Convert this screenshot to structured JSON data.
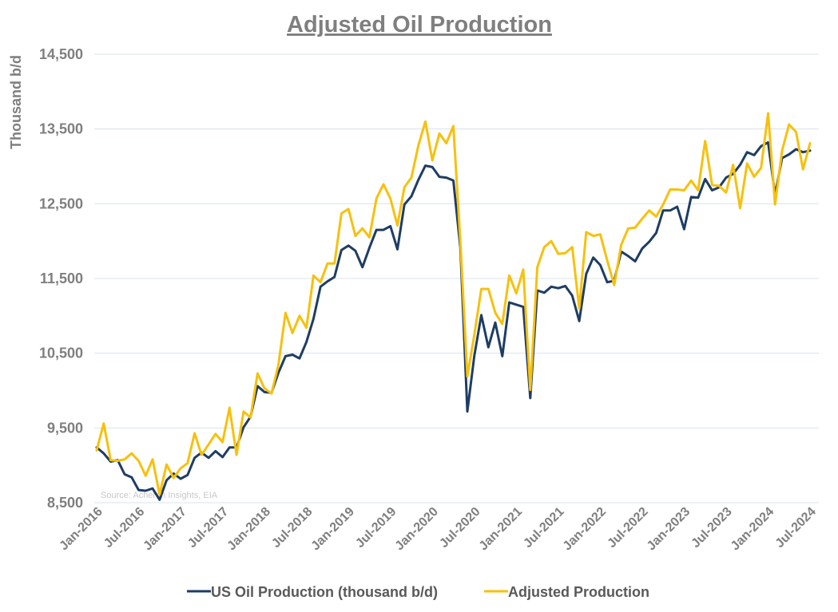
{
  "chart_data": {
    "type": "line",
    "title": "Adjusted Oil Production",
    "ylabel": "Thousand b/d",
    "ylim": [
      8500,
      14500
    ],
    "yticks": [
      "8,500",
      "9,500",
      "10,500",
      "11,500",
      "12,500",
      "13,500",
      "14,500"
    ],
    "ytick_values": [
      8500,
      9500,
      10500,
      11500,
      12500,
      13500,
      14500
    ],
    "xtick_labels": [
      "Jan-2016",
      "Jul-2016",
      "Jan-2017",
      "Jul-2017",
      "Jan-2018",
      "Jul-2018",
      "Jan-2019",
      "Jul-2019",
      "Jan-2020",
      "Jul-2020",
      "Jan-2021",
      "Jul-2021",
      "Jan-2022",
      "Jul-2022",
      "Jan-2023",
      "Jul-2023",
      "Jan-2024",
      "Jul-2024"
    ],
    "x_start": "Jan-2016",
    "x_end": "Jul-2024",
    "source": "Source: Acheron Insights, EIA",
    "grid": true,
    "legend_position": "bottom",
    "series": [
      {
        "name": "US Oil Production (thousand b/d)",
        "color": "#1f3d63",
        "values": [
          9240,
          9160,
          9050,
          9070,
          8880,
          8840,
          8670,
          8660,
          8690,
          8540,
          8800,
          8890,
          8820,
          8870,
          9100,
          9170,
          9100,
          9190,
          9110,
          9240,
          9240,
          9510,
          9650,
          10060,
          9980,
          9970,
          10240,
          10460,
          10480,
          10430,
          10650,
          10960,
          11390,
          11460,
          11520,
          11880,
          11940,
          11870,
          11650,
          11910,
          12150,
          12150,
          12200,
          11890,
          12490,
          12600,
          12820,
          13010,
          12990,
          12860,
          12850,
          12810,
          11910,
          9720,
          10470,
          11010,
          10580,
          10910,
          10460,
          11180,
          11150,
          11120,
          9900,
          11340,
          11310,
          11390,
          11370,
          11400,
          11270,
          10930,
          11560,
          11780,
          11680,
          11450,
          11470,
          11860,
          11800,
          11730,
          11900,
          11990,
          12110,
          12410,
          12410,
          12460,
          12160,
          12590,
          12580,
          12830,
          12680,
          12720,
          12850,
          12900,
          13020,
          13190,
          13150,
          13270,
          13320,
          12620,
          13110,
          13160,
          13230,
          13190,
          13210
        ]
      },
      {
        "name": "Adjusted Production",
        "color": "#f6c10e",
        "values": [
          9200,
          9560,
          9070,
          9060,
          9080,
          9160,
          9060,
          8860,
          9080,
          8610,
          9010,
          8830,
          8960,
          9030,
          9430,
          9140,
          9280,
          9420,
          9310,
          9770,
          9140,
          9720,
          9640,
          10230,
          10030,
          9960,
          10350,
          11040,
          10770,
          11000,
          10840,
          11540,
          11450,
          11700,
          11700,
          12370,
          12430,
          12070,
          12170,
          12050,
          12570,
          12760,
          12570,
          12210,
          12720,
          12850,
          13280,
          13600,
          13080,
          13440,
          13310,
          13540,
          11990,
          10190,
          10750,
          11360,
          11360,
          11040,
          10890,
          11540,
          11300,
          11620,
          10010,
          11650,
          11920,
          12000,
          11830,
          11840,
          11920,
          11100,
          12120,
          12070,
          12090,
          11740,
          11410,
          11950,
          12170,
          12180,
          12300,
          12410,
          12330,
          12490,
          12690,
          12690,
          12680,
          12810,
          12680,
          13340,
          12750,
          12740,
          12650,
          13020,
          12440,
          13040,
          12860,
          12980,
          13710,
          12490,
          13210,
          13560,
          13460,
          12960,
          13310
        ]
      }
    ]
  }
}
